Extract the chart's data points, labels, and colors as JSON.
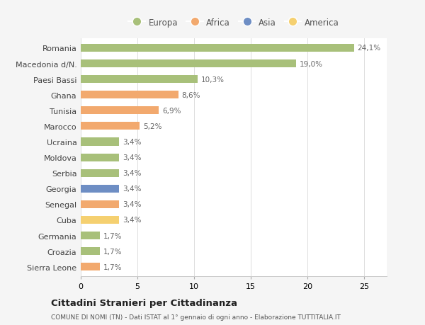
{
  "categories": [
    "Sierra Leone",
    "Croazia",
    "Germania",
    "Cuba",
    "Senegal",
    "Georgia",
    "Serbia",
    "Moldova",
    "Ucraina",
    "Marocco",
    "Tunisia",
    "Ghana",
    "Paesi Bassi",
    "Macedonia d/N.",
    "Romania"
  ],
  "values": [
    1.7,
    1.7,
    1.7,
    3.4,
    3.4,
    3.4,
    3.4,
    3.4,
    3.4,
    5.2,
    6.9,
    8.6,
    10.3,
    19.0,
    24.1
  ],
  "labels": [
    "1,7%",
    "1,7%",
    "1,7%",
    "3,4%",
    "3,4%",
    "3,4%",
    "3,4%",
    "3,4%",
    "3,4%",
    "5,2%",
    "6,9%",
    "8,6%",
    "10,3%",
    "19,0%",
    "24,1%"
  ],
  "colors": [
    "#f2a96e",
    "#a8c07a",
    "#a8c07a",
    "#f5d070",
    "#f2a96e",
    "#6e8ec4",
    "#a8c07a",
    "#a8c07a",
    "#a8c07a",
    "#f2a96e",
    "#f2a96e",
    "#f2a96e",
    "#a8c07a",
    "#a8c07a",
    "#a8c07a"
  ],
  "legend_labels": [
    "Europa",
    "Africa",
    "Asia",
    "America"
  ],
  "legend_colors": [
    "#a8c07a",
    "#f2a96e",
    "#6e8ec4",
    "#f5d070"
  ],
  "title": "Cittadini Stranieri per Cittadinanza",
  "subtitle": "COMUNE DI NOMI (TN) - Dati ISTAT al 1° gennaio di ogni anno - Elaborazione TUTTITALIA.IT",
  "xlim": [
    0,
    27
  ],
  "background_color": "#f5f5f5",
  "bar_background": "#ffffff"
}
